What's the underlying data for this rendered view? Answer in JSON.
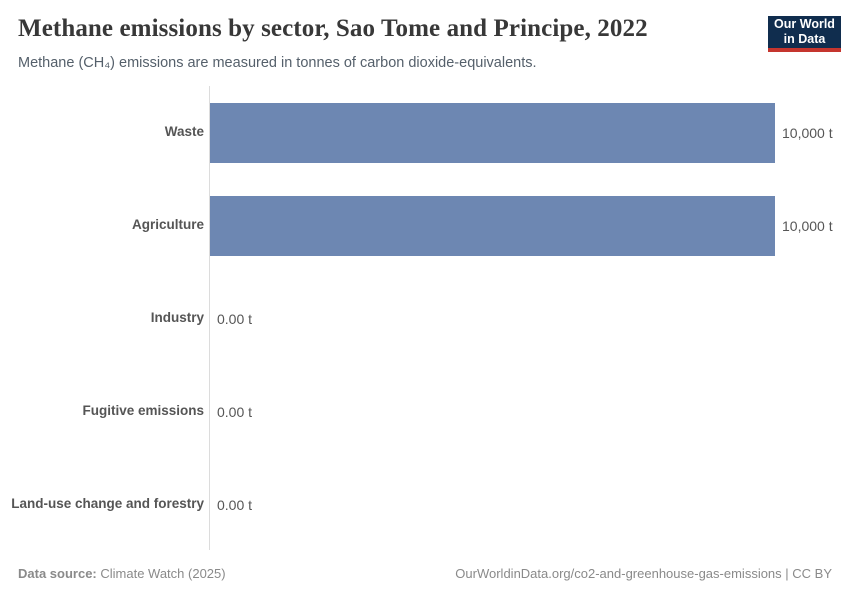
{
  "header": {
    "title": "Methane emissions by sector, Sao Tome and Principe, 2022",
    "subtitle": "Methane (CH₄) emissions are measured in tonnes of carbon dioxide-equivalents."
  },
  "logo": {
    "line1": "Our World",
    "line2": "in Data",
    "background_color": "#102d4e",
    "accent_color": "#c5352e"
  },
  "chart_data": {
    "type": "bar",
    "orientation": "horizontal",
    "title": "Methane emissions by sector, Sao Tome and Principe, 2022",
    "xlabel": "",
    "ylabel": "",
    "categories": [
      "Waste",
      "Agriculture",
      "Industry",
      "Fugitive emissions",
      "Land-use change and forestry"
    ],
    "values": [
      10000,
      10000,
      0,
      0,
      0
    ],
    "value_labels": [
      "10,000 t",
      "10,000 t",
      "0.00 t",
      "0.00 t",
      "0.00 t"
    ],
    "unit": "t",
    "xlim": [
      0,
      10000
    ],
    "grid": false,
    "legend": "none",
    "bar_color": "#6d87b2"
  },
  "footer": {
    "datasource_label": "Data source:",
    "datasource_value": " Climate Watch (2025)",
    "credit": "OurWorldinData.org/co2-and-greenhouse-gas-emissions | CC BY"
  },
  "colors": {
    "bar": "#6d87b2",
    "axis_line": "#dcdcdc",
    "title_text": "#383838",
    "subtitle_text": "#55606b",
    "label_text": "#555555",
    "footer_text": "#8a8a8a"
  }
}
